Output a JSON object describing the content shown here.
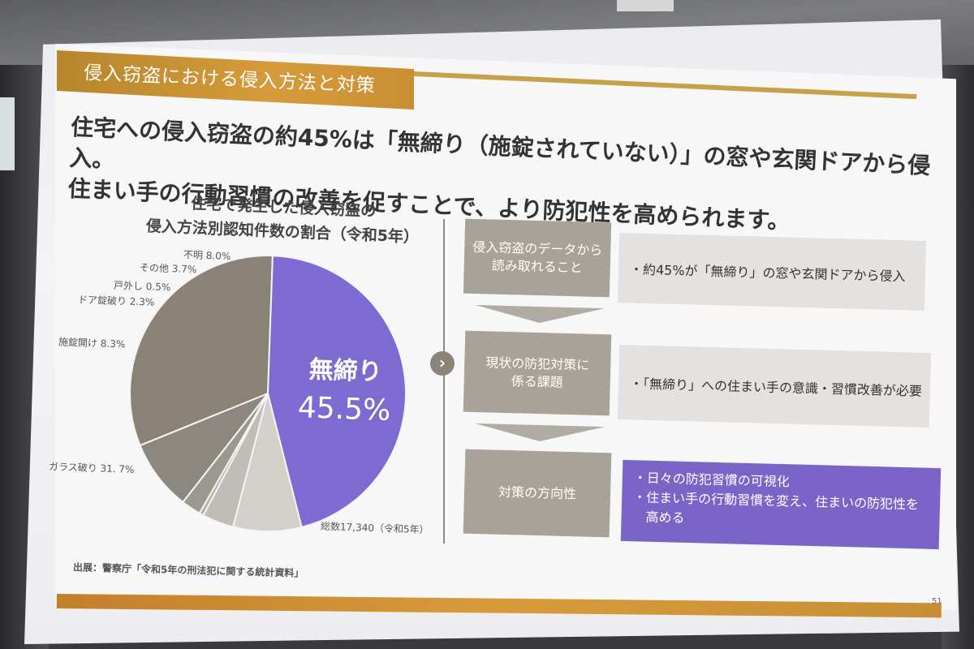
{
  "slide": {
    "banner_title": "侵入窃盗における侵入方法と対策",
    "headline_line1": "住宅への侵入窃盗の約45%は「無締り（施錠されていない）」の窓や玄関ドアから侵入。",
    "headline_line2": "住まい手の行動習慣の改善を促すことで、より防犯性を高められます。",
    "chart_title_line1": "住宅で発生した侵入窃盗の",
    "chart_title_line2": "侵入方法別認知件数の割合（令和5年）",
    "pie": {
      "center_name": "無締り",
      "center_value": "45.5%",
      "total": "総数17,340（令和5年）",
      "slices": [
        {
          "label": "不明 8.0%",
          "value": 8.0,
          "color": "#d3d0cc"
        },
        {
          "label": "その他 3.7%",
          "value": 3.7,
          "color": "#c0bcb6"
        },
        {
          "label": "戸外し 0.5%",
          "value": 0.5,
          "color": "#b6b1aa"
        },
        {
          "label": "ドア錠破り 2.3%",
          "value": 2.3,
          "color": "#9c978f"
        },
        {
          "label": "施錠開け 8.3%",
          "value": 8.3,
          "color": "#8c887f"
        },
        {
          "label": "ガラス破り 31. 7%",
          "value": 31.7,
          "color": "#8a8277"
        },
        {
          "label": "無締り 45.5%",
          "value": 45.5,
          "color": "#7e6bd2"
        }
      ]
    },
    "rows": [
      {
        "left": "侵入窃盗のデータから\n読み取れること",
        "right": "・約45%が「無締り」の窓や玄関ドアから侵入"
      },
      {
        "left": "現状の防犯対策に\n係る課題",
        "right": "・「無締り」への住まい手の意識・習慣改善が必要"
      },
      {
        "left": "対策の方向性",
        "right_items": [
          "・日々の防犯習慣の可視化",
          "・住まい手の行動習慣を変え、住まいの防犯性を\n　高める"
        ]
      }
    ],
    "source": "出展：警察庁「令和5年の刑法犯に関する統計資料」",
    "page_number": "51"
  }
}
